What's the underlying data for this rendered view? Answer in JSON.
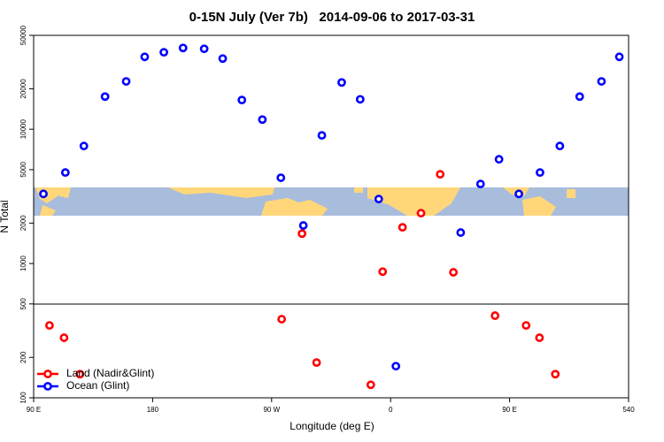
{
  "chart_data": {
    "type": "scatter",
    "title": "0-15N July (Ver 7b)   2014-09-06 to 2017-03-31",
    "xlabel": "Longitude (deg E)",
    "ylabel": "N Total",
    "log_y": true,
    "xlim": [
      90,
      540
    ],
    "ylim": [
      100,
      50000
    ],
    "xticks": [
      {
        "value": 90,
        "label": "90 E"
      },
      180,
      {
        "value": 270,
        "label": "90 W"
      },
      {
        "value": 360,
        "label": "0"
      },
      {
        "value": 450,
        "label": "90 E"
      },
      540
    ],
    "yticks": [
      100,
      200,
      500,
      1000,
      2000,
      5000,
      10000,
      20000,
      50000
    ],
    "legend": "bottom-left",
    "series": [
      {
        "name": "Land (Nadir&Glint)",
        "color": "#ff0000",
        "x": [
          102,
          113,
          125,
          277.6,
          293,
          304,
          345,
          354,
          369,
          383,
          397.5,
          407.5,
          439,
          462.5,
          472.6,
          484.6
        ],
        "values": [
          346,
          280,
          150,
          385,
          1670,
          183,
          125,
          870,
          1860,
          2370,
          4620,
          860,
          409,
          346,
          280,
          150
        ]
      },
      {
        "name": "Ocean (Glint)",
        "color": "#0000ff",
        "x": [
          97.4,
          114,
          128,
          144,
          160,
          174,
          188.5,
          203,
          219,
          233,
          247.5,
          263,
          277,
          294,
          308,
          323,
          337,
          351,
          364,
          413,
          428,
          442,
          457,
          473,
          488,
          503,
          519.5,
          533
        ],
        "values": [
          3300,
          4760,
          7500,
          17500,
          22700,
          34600,
          37400,
          40300,
          39700,
          33600,
          16500,
          11800,
          4350,
          1920,
          9000,
          22300,
          16700,
          3020,
          172,
          1700,
          3910,
          5970,
          3300,
          4760,
          7500,
          17500,
          22700,
          34600
        ]
      }
    ]
  }
}
